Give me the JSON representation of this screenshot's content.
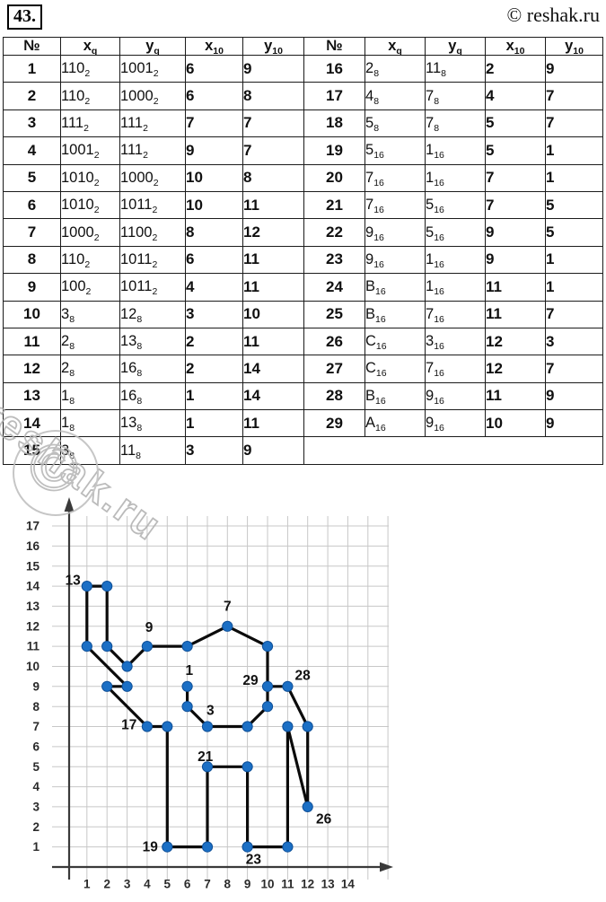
{
  "page": {
    "problem_number": "43.",
    "site_credit": "© reshak.ru",
    "watermark_text": "reshak.ru",
    "watermark_glyph": "©"
  },
  "table": {
    "headers": [
      {
        "t": "№",
        "sub": ""
      },
      {
        "t": "x",
        "sub": "q"
      },
      {
        "t": "y",
        "sub": "q"
      },
      {
        "t": "x",
        "sub": "10"
      },
      {
        "t": "y",
        "sub": "10"
      },
      {
        "t": "№",
        "sub": ""
      },
      {
        "t": "x",
        "sub": "q"
      },
      {
        "t": "y",
        "sub": "q"
      },
      {
        "t": "x",
        "sub": "10"
      },
      {
        "t": "y",
        "sub": "10"
      }
    ],
    "rows_left": [
      {
        "n": "1",
        "xq": "110",
        "xqb": "2",
        "yq": "1001",
        "yqb": "2",
        "x10": "6",
        "y10": "9"
      },
      {
        "n": "2",
        "xq": "110",
        "xqb": "2",
        "yq": "1000",
        "yqb": "2",
        "x10": "6",
        "y10": "8"
      },
      {
        "n": "3",
        "xq": "111",
        "xqb": "2",
        "yq": "111",
        "yqb": "2",
        "x10": "7",
        "y10": "7"
      },
      {
        "n": "4",
        "xq": "1001",
        "xqb": "2",
        "yq": "111",
        "yqb": "2",
        "x10": "9",
        "y10": "7"
      },
      {
        "n": "5",
        "xq": "1010",
        "xqb": "2",
        "yq": "1000",
        "yqb": "2",
        "x10": "10",
        "y10": "8"
      },
      {
        "n": "6",
        "xq": "1010",
        "xqb": "2",
        "yq": "1011",
        "yqb": "2",
        "x10": "10",
        "y10": "11"
      },
      {
        "n": "7",
        "xq": "1000",
        "xqb": "2",
        "yq": "1100",
        "yqb": "2",
        "x10": "8",
        "y10": "12"
      },
      {
        "n": "8",
        "xq": "110",
        "xqb": "2",
        "yq": "1011",
        "yqb": "2",
        "x10": "6",
        "y10": "11"
      },
      {
        "n": "9",
        "xq": "100",
        "xqb": "2",
        "yq": "1011",
        "yqb": "2",
        "x10": "4",
        "y10": "11"
      },
      {
        "n": "10",
        "xq": "3",
        "xqb": "8",
        "yq": "12",
        "yqb": "8",
        "x10": "3",
        "y10": "10"
      },
      {
        "n": "11",
        "xq": "2",
        "xqb": "8",
        "yq": "13",
        "yqb": "8",
        "x10": "2",
        "y10": "11"
      },
      {
        "n": "12",
        "xq": "2",
        "xqb": "8",
        "yq": "16",
        "yqb": "8",
        "x10": "2",
        "y10": "14"
      },
      {
        "n": "13",
        "xq": "1",
        "xqb": "8",
        "yq": "16",
        "yqb": "8",
        "x10": "1",
        "y10": "14"
      },
      {
        "n": "14",
        "xq": "1",
        "xqb": "8",
        "yq": "13",
        "yqb": "8",
        "x10": "1",
        "y10": "11"
      },
      {
        "n": "15",
        "xq": "3",
        "xqb": "8",
        "yq": "11",
        "yqb": "8",
        "x10": "3",
        "y10": "9"
      }
    ],
    "rows_right": [
      {
        "n": "16",
        "xq": "2",
        "xqb": "8",
        "yq": "11",
        "yqb": "8",
        "x10": "2",
        "y10": "9"
      },
      {
        "n": "17",
        "xq": "4",
        "xqb": "8",
        "yq": "7",
        "yqb": "8",
        "x10": "4",
        "y10": "7"
      },
      {
        "n": "18",
        "xq": "5",
        "xqb": "8",
        "yq": "7",
        "yqb": "8",
        "x10": "5",
        "y10": "7"
      },
      {
        "n": "19",
        "xq": "5",
        "xqb": "16",
        "yq": "1",
        "yqb": "16",
        "x10": "5",
        "y10": "1"
      },
      {
        "n": "20",
        "xq": "7",
        "xqb": "16",
        "yq": "1",
        "yqb": "16",
        "x10": "7",
        "y10": "1"
      },
      {
        "n": "21",
        "xq": "7",
        "xqb": "16",
        "yq": "5",
        "yqb": "16",
        "x10": "7",
        "y10": "5"
      },
      {
        "n": "22",
        "xq": "9",
        "xqb": "16",
        "yq": "5",
        "yqb": "16",
        "x10": "9",
        "y10": "5"
      },
      {
        "n": "23",
        "xq": "9",
        "xqb": "16",
        "yq": "1",
        "yqb": "16",
        "x10": "9",
        "y10": "1"
      },
      {
        "n": "24",
        "xq": "B",
        "xqb": "16",
        "yq": "1",
        "yqb": "16",
        "x10": "11",
        "y10": "1"
      },
      {
        "n": "25",
        "xq": "B",
        "xqb": "16",
        "yq": "7",
        "yqb": "16",
        "x10": "11",
        "y10": "7"
      },
      {
        "n": "26",
        "xq": "C",
        "xqb": "16",
        "yq": "3",
        "yqb": "16",
        "x10": "12",
        "y10": "3"
      },
      {
        "n": "27",
        "xq": "C",
        "xqb": "16",
        "yq": "7",
        "yqb": "16",
        "x10": "12",
        "y10": "7"
      },
      {
        "n": "28",
        "xq": "B",
        "xqb": "16",
        "yq": "9",
        "yqb": "16",
        "x10": "11",
        "y10": "9"
      },
      {
        "n": "29",
        "xq": "A",
        "xqb": "16",
        "yq": "9",
        "yqb": "16",
        "x10": "10",
        "y10": "9"
      }
    ]
  },
  "chart_data": {
    "type": "line",
    "title": "",
    "xlabel": "",
    "ylabel": "",
    "xlim": [
      0,
      16.2
    ],
    "ylim": [
      0,
      17.6
    ],
    "grid": true,
    "points": [
      {
        "n": 1,
        "x": 6,
        "y": 9
      },
      {
        "n": 2,
        "x": 6,
        "y": 8
      },
      {
        "n": 3,
        "x": 7,
        "y": 7
      },
      {
        "n": 4,
        "x": 9,
        "y": 7
      },
      {
        "n": 5,
        "x": 10,
        "y": 8
      },
      {
        "n": 6,
        "x": 10,
        "y": 11
      },
      {
        "n": 7,
        "x": 8,
        "y": 12
      },
      {
        "n": 8,
        "x": 6,
        "y": 11
      },
      {
        "n": 9,
        "x": 4,
        "y": 11
      },
      {
        "n": 10,
        "x": 3,
        "y": 10
      },
      {
        "n": 11,
        "x": 2,
        "y": 11
      },
      {
        "n": 12,
        "x": 2,
        "y": 14
      },
      {
        "n": 13,
        "x": 1,
        "y": 14
      },
      {
        "n": 14,
        "x": 1,
        "y": 11
      },
      {
        "n": 15,
        "x": 3,
        "y": 9
      },
      {
        "n": 16,
        "x": 2,
        "y": 9
      },
      {
        "n": 17,
        "x": 4,
        "y": 7
      },
      {
        "n": 18,
        "x": 5,
        "y": 7
      },
      {
        "n": 19,
        "x": 5,
        "y": 1
      },
      {
        "n": 20,
        "x": 7,
        "y": 1
      },
      {
        "n": 21,
        "x": 7,
        "y": 5
      },
      {
        "n": 22,
        "x": 9,
        "y": 5
      },
      {
        "n": 23,
        "x": 9,
        "y": 1
      },
      {
        "n": 24,
        "x": 11,
        "y": 1
      },
      {
        "n": 25,
        "x": 11,
        "y": 7
      },
      {
        "n": 26,
        "x": 12,
        "y": 3
      },
      {
        "n": 27,
        "x": 12,
        "y": 7
      },
      {
        "n": 28,
        "x": 11,
        "y": 9
      },
      {
        "n": 29,
        "x": 10,
        "y": 9
      }
    ],
    "point_labels": [
      {
        "n": "13",
        "x": 0.3,
        "y": 14.3
      },
      {
        "n": "9",
        "x": 4.1,
        "y": 11.95
      },
      {
        "n": "7",
        "x": 8.0,
        "y": 13.0
      },
      {
        "n": "1",
        "x": 6.1,
        "y": 9.8
      },
      {
        "n": "29",
        "x": 9.15,
        "y": 9.3
      },
      {
        "n": "28",
        "x": 11.75,
        "y": 9.55
      },
      {
        "n": "17",
        "x": 3.1,
        "y": 7.1
      },
      {
        "n": "3",
        "x": 7.15,
        "y": 7.8
      },
      {
        "n": "21",
        "x": 6.9,
        "y": 5.5
      },
      {
        "n": "19",
        "x": 4.15,
        "y": 1.0
      },
      {
        "n": "23",
        "x": 9.3,
        "y": 0.38
      },
      {
        "n": "26",
        "x": 12.8,
        "y": 2.4
      }
    ],
    "x_ticks": [
      "1",
      "2",
      "3",
      "4",
      "5",
      "6",
      "7",
      "8",
      "9",
      "10",
      "11",
      "12",
      "13",
      "14"
    ],
    "y_ticks": [
      "1",
      "2",
      "3",
      "4",
      "5",
      "6",
      "7",
      "8",
      "9",
      "10",
      "11",
      "12",
      "13",
      "14",
      "15",
      "16",
      "17"
    ],
    "colors": {
      "point": "#1b6fc5",
      "point_edge": "#0e4f97",
      "line": "#0b0b0b",
      "grid": "#c7c7c7",
      "axis": "#3a3a3a",
      "tick_text": "#2b2b2b",
      "label_text": "#111111"
    }
  }
}
